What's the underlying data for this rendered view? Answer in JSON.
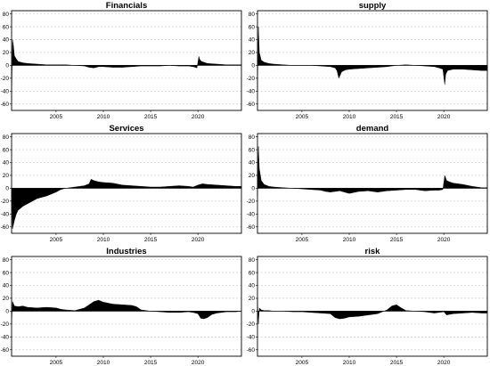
{
  "chart_data": [
    {
      "type": "area",
      "title": "Financials",
      "ylim": [
        -70,
        85
      ],
      "yticks": [
        -60,
        -40,
        -20,
        0,
        20,
        40,
        60,
        80
      ],
      "xlim": [
        2000.3,
        2024.6
      ],
      "xticks": [
        2005,
        2010,
        2015,
        2020
      ],
      "grid": true,
      "x": [
        2000.3,
        2000.4,
        2000.5,
        2000.6,
        2000.8,
        2001.0,
        2001.5,
        2002.0,
        2003.0,
        2004.0,
        2005.0,
        2006.0,
        2007.0,
        2008.0,
        2008.5,
        2009.0,
        2009.5,
        2010.0,
        2011.0,
        2012.0,
        2013.0,
        2014.0,
        2015.0,
        2016.0,
        2017.0,
        2018.0,
        2019.0,
        2019.5,
        2019.9,
        2020.1,
        2020.2,
        2020.4,
        2020.6,
        2021.0,
        2022.0,
        2023.0,
        2024.0,
        2024.6
      ],
      "values": [
        -55,
        40,
        30,
        15,
        10,
        6,
        4,
        3,
        2,
        1,
        1,
        1,
        0,
        -1,
        -3,
        -4,
        -2,
        -2,
        -3,
        -3,
        -2,
        -1,
        -1,
        -1,
        0,
        -1,
        -1,
        -2,
        -4,
        14,
        9,
        6,
        5,
        3,
        2,
        1,
        1,
        1
      ]
    },
    {
      "type": "area",
      "title": "supply",
      "ylim": [
        -70,
        85
      ],
      "yticks": [
        -60,
        -40,
        -20,
        0,
        20,
        40,
        60,
        80
      ],
      "xlim": [
        2000.3,
        2024.6
      ],
      "xticks": [
        2005,
        2010,
        2015,
        2020
      ],
      "grid": true,
      "x": [
        2000.3,
        2000.4,
        2000.5,
        2000.7,
        2001.0,
        2001.5,
        2002.0,
        2003.0,
        2004.0,
        2005.0,
        2006.0,
        2007.0,
        2008.0,
        2008.5,
        2008.7,
        2008.9,
        2009.2,
        2009.6,
        2010.0,
        2011.0,
        2012.0,
        2013.0,
        2014.0,
        2015.0,
        2016.0,
        2017.0,
        2018.0,
        2019.0,
        2019.5,
        2019.9,
        2020.1,
        2020.2,
        2020.4,
        2020.7,
        2021.0,
        2022.0,
        2023.0,
        2024.0,
        2024.6
      ],
      "values": [
        -40,
        60,
        20,
        8,
        5,
        3,
        2,
        1,
        0,
        0,
        0,
        -1,
        -2,
        -4,
        -8,
        -20,
        -10,
        -7,
        -6,
        -5,
        -4,
        -3,
        -2,
        0,
        1,
        0,
        -1,
        -2,
        -4,
        -6,
        -30,
        -14,
        -8,
        -7,
        -6,
        -6,
        -7,
        -8,
        -8
      ]
    },
    {
      "type": "area",
      "title": "Services",
      "ylim": [
        -70,
        85
      ],
      "yticks": [
        -60,
        -40,
        -20,
        0,
        20,
        40,
        60,
        80
      ],
      "xlim": [
        2000.3,
        2024.6
      ],
      "xticks": [
        2005,
        2010,
        2015,
        2020
      ],
      "grid": true,
      "x": [
        2000.3,
        2000.4,
        2000.6,
        2000.8,
        2001.0,
        2001.5,
        2002.0,
        2002.5,
        2003.0,
        2004.0,
        2005.0,
        2005.5,
        2006.0,
        2007.0,
        2007.5,
        2008.0,
        2008.5,
        2008.7,
        2009.0,
        2009.5,
        2010.0,
        2011.0,
        2012.0,
        2013.0,
        2014.0,
        2015.0,
        2016.0,
        2017.0,
        2018.0,
        2019.0,
        2019.5,
        2020.0,
        2020.5,
        2021.0,
        2022.0,
        2023.0,
        2024.0,
        2024.6
      ],
      "values": [
        -10,
        -63,
        -50,
        -40,
        -34,
        -28,
        -24,
        -20,
        -16,
        -12,
        -6,
        -2,
        0,
        2,
        3,
        4,
        7,
        14,
        12,
        10,
        9,
        8,
        5,
        4,
        3,
        2,
        2,
        3,
        4,
        3,
        2,
        5,
        7,
        6,
        5,
        4,
        3,
        3
      ]
    },
    {
      "type": "area",
      "title": "demand",
      "ylim": [
        -70,
        85
      ],
      "yticks": [
        -60,
        -40,
        -20,
        0,
        20,
        40,
        60,
        80
      ],
      "xlim": [
        2000.3,
        2024.6
      ],
      "xticks": [
        2005,
        2010,
        2015,
        2020
      ],
      "grid": true,
      "x": [
        2000.3,
        2000.4,
        2000.5,
        2000.7,
        2001.0,
        2001.5,
        2002.0,
        2003.0,
        2004.0,
        2005.0,
        2006.0,
        2007.0,
        2007.5,
        2008.0,
        2008.5,
        2009.0,
        2009.5,
        2010.0,
        2011.0,
        2012.0,
        2013.0,
        2014.0,
        2015.0,
        2016.0,
        2017.0,
        2018.0,
        2019.0,
        2019.5,
        2019.9,
        2020.1,
        2020.3,
        2020.6,
        2021.0,
        2022.0,
        2023.0,
        2024.0,
        2024.6
      ],
      "values": [
        -12,
        65,
        30,
        12,
        6,
        3,
        2,
        1,
        0,
        -1,
        -2,
        -3,
        -5,
        -6,
        -5,
        -4,
        -6,
        -8,
        -5,
        -4,
        -6,
        -4,
        -3,
        -2,
        -2,
        -4,
        -3,
        -3,
        -2,
        20,
        12,
        10,
        8,
        6,
        3,
        1,
        1
      ]
    },
    {
      "type": "area",
      "title": "Industries",
      "ylim": [
        -70,
        85
      ],
      "yticks": [
        -60,
        -40,
        -20,
        0,
        20,
        40,
        60,
        80
      ],
      "xlim": [
        2000.3,
        2024.6
      ],
      "xticks": [
        2005,
        2010,
        2015,
        2020
      ],
      "grid": true,
      "x": [
        2000.3,
        2000.4,
        2000.6,
        2001.0,
        2001.5,
        2002.0,
        2003.0,
        2004.0,
        2005.0,
        2005.5,
        2006.0,
        2007.0,
        2007.5,
        2008.0,
        2008.5,
        2009.0,
        2009.5,
        2010.0,
        2011.0,
        2012.0,
        2013.0,
        2013.5,
        2014.0,
        2015.0,
        2016.0,
        2017.0,
        2018.0,
        2019.0,
        2019.5,
        2020.0,
        2020.3,
        2020.6,
        2021.0,
        2021.5,
        2022.0,
        2023.0,
        2024.0,
        2024.6
      ],
      "values": [
        -20,
        15,
        8,
        7,
        8,
        6,
        5,
        6,
        5,
        3,
        2,
        1,
        3,
        5,
        10,
        15,
        17,
        14,
        11,
        10,
        9,
        7,
        2,
        0,
        -1,
        -2,
        -2,
        -1,
        -2,
        -4,
        -11,
        -12,
        -10,
        -5,
        -3,
        -1,
        -1,
        0
      ]
    },
    {
      "type": "area",
      "title": "risk",
      "ylim": [
        -70,
        85
      ],
      "yticks": [
        -60,
        -40,
        -20,
        0,
        20,
        40,
        60,
        80
      ],
      "xlim": [
        2000.3,
        2024.6
      ],
      "xticks": [
        2005,
        2010,
        2015,
        2020
      ],
      "grid": true,
      "x": [
        2000.3,
        2000.4,
        2000.5,
        2000.7,
        2001.0,
        2001.5,
        2002.0,
        2003.0,
        2004.0,
        2005.0,
        2006.0,
        2007.0,
        2008.0,
        2008.5,
        2009.0,
        2009.5,
        2010.0,
        2011.0,
        2012.0,
        2013.0,
        2014.0,
        2014.5,
        2015.0,
        2015.5,
        2016.0,
        2017.0,
        2018.0,
        2019.0,
        2019.5,
        2020.0,
        2020.3,
        2020.6,
        2021.0,
        2022.0,
        2023.0,
        2024.0,
        2024.6
      ],
      "values": [
        20,
        -20,
        5,
        2,
        1,
        1,
        0,
        0,
        -1,
        -1,
        -2,
        -3,
        -4,
        -10,
        -12,
        -11,
        -9,
        -8,
        -6,
        -4,
        2,
        8,
        10,
        5,
        1,
        0,
        -1,
        -3,
        -2,
        -1,
        -6,
        -5,
        -4,
        -3,
        -2,
        -3,
        -3
      ]
    }
  ]
}
